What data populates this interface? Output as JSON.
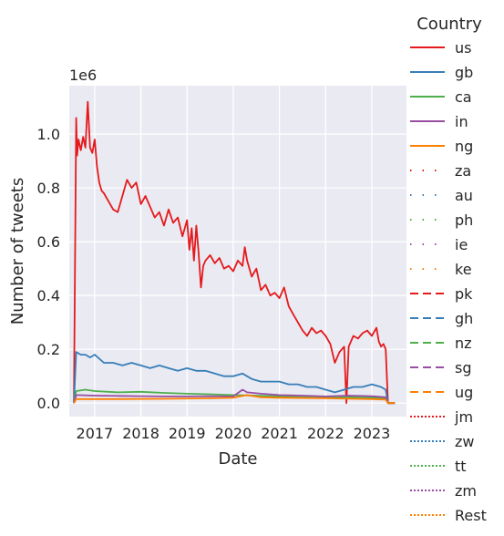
{
  "chart_data": {
    "type": "line",
    "title": "",
    "xlabel": "Date",
    "ylabel": "Number of tweets",
    "y_offset_label": "1e6",
    "xlim": [
      2016.45,
      2023.75
    ],
    "ylim": [
      -0.05,
      1.18
    ],
    "x_ticks": [
      2017,
      2018,
      2019,
      2020,
      2021,
      2022,
      2023
    ],
    "x_tick_labels": [
      "2017",
      "2018",
      "2019",
      "2020",
      "2021",
      "2022",
      "2023"
    ],
    "y_ticks": [
      0.0,
      0.2,
      0.4,
      0.6,
      0.8,
      1.0
    ],
    "y_tick_labels": [
      "0.0",
      "0.2",
      "0.4",
      "0.6",
      "0.8",
      "1.0"
    ],
    "grid": true,
    "background": "#eaeaf2",
    "legend": {
      "title": "Country",
      "placement": "right outside"
    },
    "series": [
      {
        "name": "us",
        "color": "#e41a1c",
        "dash": "solid",
        "x": [
          2016.55,
          2016.6,
          2016.62,
          2016.65,
          2016.7,
          2016.75,
          2016.8,
          2016.85,
          2016.9,
          2016.95,
          2017.0,
          2017.05,
          2017.1,
          2017.15,
          2017.2,
          2017.3,
          2017.4,
          2017.5,
          2017.6,
          2017.7,
          2017.8,
          2017.9,
          2018.0,
          2018.1,
          2018.2,
          2018.3,
          2018.4,
          2018.5,
          2018.6,
          2018.7,
          2018.8,
          2018.9,
          2019.0,
          2019.05,
          2019.1,
          2019.15,
          2019.2,
          2019.25,
          2019.3,
          2019.35,
          2019.4,
          2019.5,
          2019.6,
          2019.7,
          2019.8,
          2019.9,
          2020.0,
          2020.1,
          2020.2,
          2020.25,
          2020.3,
          2020.4,
          2020.5,
          2020.6,
          2020.7,
          2020.8,
          2020.9,
          2021.0,
          2021.1,
          2021.2,
          2021.3,
          2021.4,
          2021.5,
          2021.6,
          2021.7,
          2021.8,
          2021.9,
          2022.0,
          2022.1,
          2022.2,
          2022.3,
          2022.4,
          2022.45,
          2022.5,
          2022.6,
          2022.7,
          2022.8,
          2022.9,
          2023.0,
          2023.1,
          2023.15,
          2023.2,
          2023.25,
          2023.3,
          2023.35,
          2023.5
        ],
        "y": [
          0.0,
          1.06,
          0.92,
          0.98,
          0.94,
          0.99,
          0.95,
          1.12,
          0.95,
          0.93,
          0.98,
          0.88,
          0.82,
          0.79,
          0.78,
          0.75,
          0.72,
          0.71,
          0.77,
          0.83,
          0.8,
          0.82,
          0.74,
          0.77,
          0.73,
          0.69,
          0.71,
          0.66,
          0.72,
          0.67,
          0.69,
          0.62,
          0.68,
          0.57,
          0.65,
          0.53,
          0.66,
          0.56,
          0.43,
          0.51,
          0.53,
          0.55,
          0.52,
          0.54,
          0.5,
          0.51,
          0.49,
          0.53,
          0.51,
          0.58,
          0.53,
          0.47,
          0.5,
          0.42,
          0.44,
          0.4,
          0.41,
          0.39,
          0.43,
          0.36,
          0.33,
          0.3,
          0.27,
          0.25,
          0.28,
          0.26,
          0.27,
          0.25,
          0.22,
          0.15,
          0.19,
          0.21,
          0.0,
          0.21,
          0.25,
          0.24,
          0.26,
          0.27,
          0.25,
          0.28,
          0.23,
          0.21,
          0.22,
          0.2,
          0.0,
          0.0
        ]
      },
      {
        "name": "gb",
        "color": "#377eb8",
        "dash": "solid",
        "x": [
          2016.55,
          2016.6,
          2016.7,
          2016.8,
          2016.9,
          2017.0,
          2017.2,
          2017.4,
          2017.6,
          2017.8,
          2018.0,
          2018.2,
          2018.4,
          2018.6,
          2018.8,
          2019.0,
          2019.2,
          2019.4,
          2019.6,
          2019.8,
          2020.0,
          2020.2,
          2020.4,
          2020.6,
          2020.8,
          2021.0,
          2021.2,
          2021.4,
          2021.6,
          2021.8,
          2022.0,
          2022.2,
          2022.4,
          2022.6,
          2022.8,
          2023.0,
          2023.2,
          2023.3,
          2023.35,
          2023.5
        ],
        "y": [
          0.0,
          0.19,
          0.18,
          0.18,
          0.17,
          0.18,
          0.15,
          0.15,
          0.14,
          0.15,
          0.14,
          0.13,
          0.14,
          0.13,
          0.12,
          0.13,
          0.12,
          0.12,
          0.11,
          0.1,
          0.1,
          0.11,
          0.09,
          0.08,
          0.08,
          0.08,
          0.07,
          0.07,
          0.06,
          0.06,
          0.05,
          0.04,
          0.05,
          0.06,
          0.06,
          0.07,
          0.06,
          0.05,
          0.0,
          0.0
        ]
      },
      {
        "name": "ca",
        "color": "#4daf4a",
        "dash": "solid",
        "x": [
          2016.55,
          2016.6,
          2016.8,
          2017.0,
          2017.5,
          2018.0,
          2018.5,
          2019.0,
          2019.5,
          2020.0,
          2020.5,
          2021.0,
          2021.5,
          2022.0,
          2022.5,
          2023.0,
          2023.3,
          2023.35,
          2023.5
        ],
        "y": [
          0.0,
          0.045,
          0.05,
          0.045,
          0.04,
          0.042,
          0.038,
          0.035,
          0.033,
          0.03,
          0.028,
          0.025,
          0.022,
          0.02,
          0.022,
          0.02,
          0.018,
          0.0,
          0.0
        ]
      },
      {
        "name": "in",
        "color": "#984ea3",
        "dash": "solid",
        "x": [
          2016.55,
          2016.6,
          2017.0,
          2017.5,
          2018.0,
          2018.5,
          2019.0,
          2019.5,
          2020.0,
          2020.2,
          2020.3,
          2020.6,
          2021.0,
          2021.5,
          2022.0,
          2022.5,
          2023.0,
          2023.3,
          2023.35,
          2023.5
        ],
        "y": [
          0.0,
          0.03,
          0.028,
          0.027,
          0.026,
          0.025,
          0.025,
          0.026,
          0.025,
          0.05,
          0.04,
          0.035,
          0.03,
          0.028,
          0.025,
          0.028,
          0.026,
          0.022,
          0.0,
          0.0
        ]
      },
      {
        "name": "ng",
        "color": "#ff7f00",
        "dash": "solid",
        "x": [
          2016.55,
          2016.6,
          2017.5,
          2018.5,
          2019.5,
          2020.0,
          2020.3,
          2020.6,
          2021.0,
          2022.0,
          2023.0,
          2023.3,
          2023.35,
          2023.5
        ],
        "y": [
          0.0,
          0.015,
          0.015,
          0.016,
          0.018,
          0.02,
          0.03,
          0.022,
          0.02,
          0.018,
          0.015,
          0.013,
          0.0,
          0.0
        ]
      },
      {
        "name": "za",
        "color": "#e41a1c",
        "dash": "dots-sparse"
      },
      {
        "name": "au",
        "color": "#377eb8",
        "dash": "dots-sparse"
      },
      {
        "name": "ph",
        "color": "#4daf4a",
        "dash": "dots-sparse"
      },
      {
        "name": "ie",
        "color": "#984ea3",
        "dash": "dots-sparse"
      },
      {
        "name": "ke",
        "color": "#ff7f00",
        "dash": "dots-sparse"
      },
      {
        "name": "pk",
        "color": "#e41a1c",
        "dash": "dashed"
      },
      {
        "name": "gh",
        "color": "#377eb8",
        "dash": "dashed"
      },
      {
        "name": "nz",
        "color": "#4daf4a",
        "dash": "dashed"
      },
      {
        "name": "sg",
        "color": "#984ea3",
        "dash": "dashed"
      },
      {
        "name": "ug",
        "color": "#ff7f00",
        "dash": "dashed"
      },
      {
        "name": "jm",
        "color": "#e41a1c",
        "dash": "dotted"
      },
      {
        "name": "zw",
        "color": "#377eb8",
        "dash": "dotted"
      },
      {
        "name": "tt",
        "color": "#4daf4a",
        "dash": "dotted"
      },
      {
        "name": "zm",
        "color": "#984ea3",
        "dash": "dotted"
      },
      {
        "name": "Rest",
        "color": "#ff7f00",
        "dash": "dotted"
      }
    ]
  }
}
